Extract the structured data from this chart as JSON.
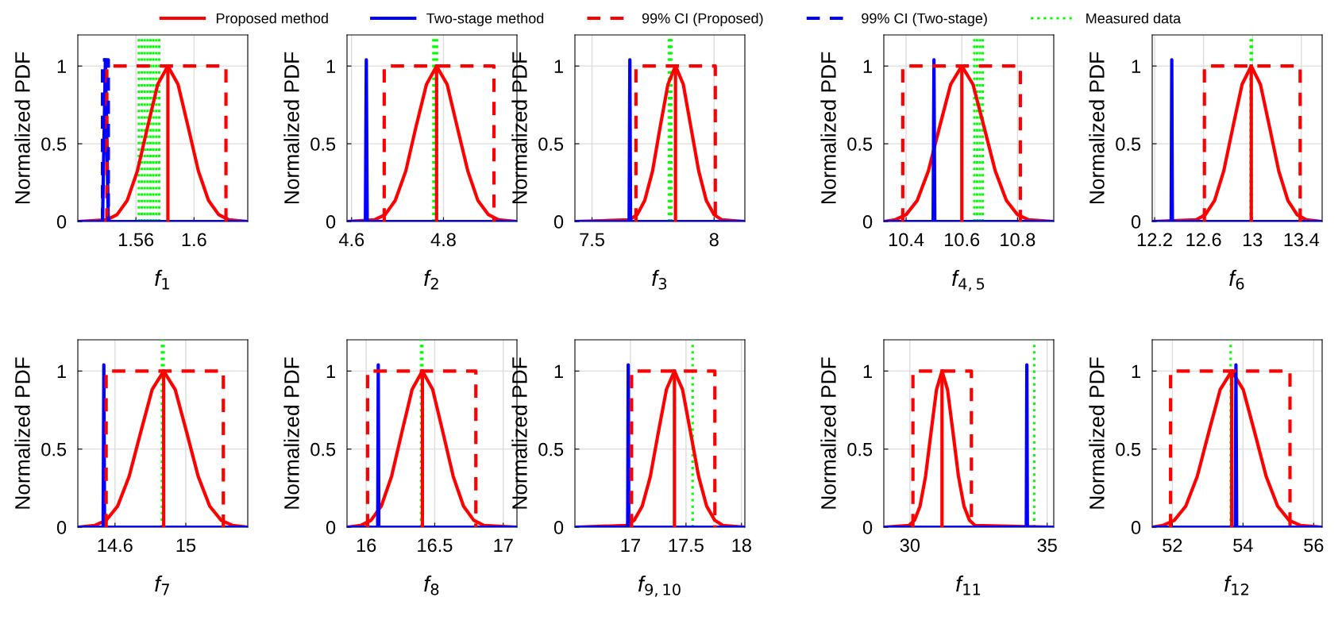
{
  "chart_data": [
    {
      "type": "line",
      "xlabel": "f$_{1}$",
      "ylabel": "Normalized PDF",
      "xlim": [
        1.52,
        1.637
      ],
      "xticks": [
        1.56,
        1.6
      ],
      "ylim": [
        0,
        1.2
      ],
      "yticks": [
        0,
        0.5,
        1
      ],
      "grid": true,
      "legend": "top",
      "series": [
        {
          "name": "Proposed method",
          "color": "#ff0000",
          "line_style": "solid",
          "x": [
            1.52,
            1.54,
            1.547,
            1.554,
            1.561,
            1.568,
            1.575,
            1.582,
            1.589,
            1.596,
            1.603,
            1.61,
            1.617,
            1.624,
            1.637
          ],
          "values": [
            0,
            0.011,
            0.044,
            0.135,
            0.325,
            0.607,
            0.882,
            1,
            0.882,
            0.607,
            0.325,
            0.135,
            0.044,
            0.011,
            0
          ]
        },
        {
          "name": "Two-stage method",
          "color": "#0000ff",
          "line_style": "solid",
          "x": [
            1.52,
            1.537,
            1.539,
            1.541,
            1.637
          ],
          "values": [
            0,
            0,
            1.04,
            0,
            0
          ]
        },
        {
          "name": "99% CI (Proposed)",
          "color": "#ff0000",
          "line_style": "dashed",
          "x": [
            1.54,
            1.54,
            1.622,
            1.622
          ],
          "values": [
            0,
            1,
            1,
            0
          ]
        },
        {
          "name": "99% CI (Two-stage)",
          "color": "#0000ff",
          "line_style": "dashed",
          "x": [
            1.537,
            1.537,
            1.541,
            1.541
          ],
          "values": [
            0,
            1.04,
            1.04,
            0
          ]
        },
        {
          "color": "#ff0000",
          "line_style": "solid",
          "x": [
            1.582,
            1.582
          ],
          "values": [
            0,
            1
          ]
        }
      ],
      "ref_lines": [
        {
          "axis": "x",
          "value": 1.562,
          "label": "Measured data",
          "color": "#00ff00",
          "line_style": "dotted"
        },
        {
          "axis": "x",
          "value": 1.564,
          "color": "#00ff00",
          "line_style": "dotted"
        },
        {
          "axis": "x",
          "value": 1.566,
          "color": "#00ff00",
          "line_style": "dotted"
        },
        {
          "axis": "x",
          "value": 1.568,
          "color": "#00ff00",
          "line_style": "dotted"
        },
        {
          "axis": "x",
          "value": 1.57,
          "color": "#00ff00",
          "line_style": "dotted"
        },
        {
          "axis": "x",
          "value": 1.572,
          "color": "#00ff00",
          "line_style": "dotted"
        },
        {
          "axis": "x",
          "value": 1.574,
          "color": "#00ff00",
          "line_style": "dotted"
        },
        {
          "axis": "x",
          "value": 1.576,
          "color": "#00ff00",
          "line_style": "dotted"
        }
      ]
    },
    {
      "type": "line",
      "xlabel": "f$_{2}$",
      "ylabel": "Normalized PDF",
      "xlim": [
        4.59,
        4.96
      ],
      "xticks": [
        4.6,
        4.8
      ],
      "ylim": [
        0,
        1.2
      ],
      "yticks": [
        0,
        0.5,
        1
      ],
      "grid": true,
      "series": [
        {
          "color": "#ff0000",
          "line_style": "solid",
          "x": [
            4.59,
            4.65,
            4.673,
            4.695,
            4.718,
            4.74,
            4.763,
            4.785,
            4.808,
            4.83,
            4.853,
            4.875,
            4.898,
            4.92,
            4.96
          ],
          "values": [
            0,
            0.011,
            0.044,
            0.135,
            0.325,
            0.607,
            0.882,
            1,
            0.882,
            0.607,
            0.325,
            0.135,
            0.044,
            0.011,
            0
          ]
        },
        {
          "color": "#0000ff",
          "line_style": "solid",
          "x": [
            4.59,
            4.63,
            4.632,
            4.634,
            4.96
          ],
          "values": [
            0,
            0,
            1.04,
            0,
            0
          ]
        },
        {
          "color": "#ff0000",
          "line_style": "dashed",
          "x": [
            4.671,
            4.671,
            4.91,
            4.91
          ],
          "values": [
            0,
            1,
            1,
            0
          ]
        },
        {
          "color": "#ff0000",
          "line_style": "solid",
          "x": [
            4.785,
            4.785
          ],
          "values": [
            0,
            1
          ]
        }
      ],
      "ref_lines": [
        {
          "axis": "x",
          "value": 4.778,
          "color": "#00ff00",
          "line_style": "dotted"
        },
        {
          "axis": "x",
          "value": 4.782,
          "color": "#00ff00",
          "line_style": "dotted"
        },
        {
          "axis": "x",
          "value": 4.786,
          "color": "#00ff00",
          "line_style": "dotted"
        }
      ]
    },
    {
      "type": "line",
      "xlabel": "f$_{3}$",
      "ylabel": "Normalized PDF",
      "xlim": [
        7.43,
        8.126
      ],
      "xticks": [
        7.5,
        8
      ],
      "ylim": [
        0,
        1.2
      ],
      "yticks": [
        0,
        0.5,
        1
      ],
      "grid": true,
      "series": [
        {
          "color": "#ff0000",
          "line_style": "solid",
          "x": [
            7.43,
            7.653,
            7.685,
            7.716,
            7.748,
            7.779,
            7.811,
            7.842,
            7.874,
            7.905,
            7.937,
            7.968,
            8.0,
            8.031,
            8.126
          ],
          "values": [
            0,
            0.011,
            0.044,
            0.135,
            0.325,
            0.607,
            0.882,
            1,
            0.882,
            0.607,
            0.325,
            0.135,
            0.044,
            0.011,
            0
          ]
        },
        {
          "color": "#0000ff",
          "line_style": "solid",
          "x": [
            7.43,
            7.652,
            7.655,
            7.658,
            8.126
          ],
          "values": [
            0,
            0,
            1.04,
            0,
            0
          ]
        },
        {
          "color": "#ff0000",
          "line_style": "dashed",
          "x": [
            7.68,
            7.68,
            8.005,
            8.005
          ],
          "values": [
            0,
            1,
            1,
            0
          ]
        },
        {
          "color": "#ff0000",
          "line_style": "solid",
          "x": [
            7.842,
            7.842
          ],
          "values": [
            0,
            1
          ]
        }
      ],
      "ref_lines": [
        {
          "axis": "x",
          "value": 7.815,
          "color": "#00ff00",
          "line_style": "dotted"
        },
        {
          "axis": "x",
          "value": 7.82,
          "color": "#00ff00",
          "line_style": "dotted"
        },
        {
          "axis": "x",
          "value": 7.825,
          "color": "#00ff00",
          "line_style": "dotted"
        }
      ]
    },
    {
      "type": "line",
      "xlabel": "f$_{4,5}$",
      "ylabel": "Normalized PDF",
      "xlim": [
        10.32,
        10.93
      ],
      "xticks": [
        10.4,
        10.6,
        10.8
      ],
      "ylim": [
        0,
        1.2
      ],
      "yticks": [
        0,
        0.5,
        1
      ],
      "grid": true,
      "series": [
        {
          "color": "#ff0000",
          "line_style": "solid",
          "x": [
            10.32,
            10.36,
            10.4,
            10.44,
            10.48,
            10.52,
            10.56,
            10.6,
            10.64,
            10.68,
            10.72,
            10.76,
            10.8,
            10.84,
            10.93
          ],
          "values": [
            0,
            0.011,
            0.044,
            0.135,
            0.325,
            0.607,
            0.882,
            1,
            0.882,
            0.607,
            0.325,
            0.135,
            0.044,
            0.011,
            0
          ]
        },
        {
          "color": "#0000ff",
          "line_style": "solid",
          "x": [
            10.32,
            10.497,
            10.5,
            10.503,
            10.93
          ],
          "values": [
            0,
            0,
            1.04,
            0,
            0
          ]
        },
        {
          "color": "#ff0000",
          "line_style": "dashed",
          "x": [
            10.388,
            10.388,
            10.81,
            10.81
          ],
          "values": [
            0,
            1,
            1,
            0
          ]
        },
        {
          "color": "#ff0000",
          "line_style": "solid",
          "x": [
            10.6,
            10.6
          ],
          "values": [
            0,
            1
          ]
        }
      ],
      "ref_lines": [
        {
          "axis": "x",
          "value": 10.645,
          "color": "#00ff00",
          "line_style": "dotted"
        },
        {
          "axis": "x",
          "value": 10.655,
          "color": "#00ff00",
          "line_style": "dotted"
        },
        {
          "axis": "x",
          "value": 10.665,
          "color": "#00ff00",
          "line_style": "dotted"
        },
        {
          "axis": "x",
          "value": 10.675,
          "color": "#00ff00",
          "line_style": "dotted"
        }
      ]
    },
    {
      "type": "line",
      "xlabel": "f$_{6}$",
      "ylabel": "Normalized PDF",
      "xlim": [
        12.18,
        13.57
      ],
      "xticks": [
        12.2,
        12.6,
        13,
        13.4
      ],
      "ylim": [
        0,
        1.2
      ],
      "yticks": [
        0,
        0.5,
        1
      ],
      "grid": true,
      "series": [
        {
          "color": "#ff0000",
          "line_style": "solid",
          "x": [
            12.18,
            12.54,
            12.615,
            12.69,
            12.765,
            12.84,
            12.915,
            12.99,
            13.065,
            13.14,
            13.215,
            13.29,
            13.365,
            13.44,
            13.57
          ],
          "values": [
            0,
            0.011,
            0.044,
            0.135,
            0.325,
            0.607,
            0.882,
            1,
            0.882,
            0.607,
            0.325,
            0.135,
            0.044,
            0.011,
            0
          ]
        },
        {
          "color": "#0000ff",
          "line_style": "solid",
          "x": [
            12.18,
            12.335,
            12.34,
            12.345,
            13.57
          ],
          "values": [
            0,
            0,
            1.04,
            0,
            0
          ]
        },
        {
          "color": "#ff0000",
          "line_style": "dashed",
          "x": [
            12.607,
            12.607,
            13.39,
            13.39
          ],
          "values": [
            0,
            1,
            1,
            0
          ]
        },
        {
          "color": "#ff0000",
          "line_style": "solid",
          "x": [
            12.99,
            12.99
          ],
          "values": [
            0,
            1
          ]
        }
      ],
      "ref_lines": [
        {
          "axis": "x",
          "value": 12.985,
          "color": "#00ff00",
          "line_style": "dotted"
        },
        {
          "axis": "x",
          "value": 12.995,
          "color": "#00ff00",
          "line_style": "dotted"
        }
      ]
    },
    {
      "type": "line",
      "xlabel": "f$_{7}$",
      "ylabel": "Normalized PDF",
      "xlim": [
        14.39,
        15.35
      ],
      "xticks": [
        14.6,
        15
      ],
      "ylim": [
        0,
        1.2
      ],
      "yticks": [
        0,
        0.5,
        1
      ],
      "grid": true,
      "series": [
        {
          "color": "#ff0000",
          "line_style": "solid",
          "x": [
            14.39,
            14.485,
            14.55,
            14.615,
            14.68,
            14.745,
            14.81,
            14.875,
            14.94,
            15.005,
            15.07,
            15.135,
            15.2,
            15.265,
            15.35
          ],
          "values": [
            0,
            0.011,
            0.044,
            0.135,
            0.325,
            0.607,
            0.882,
            1,
            0.882,
            0.607,
            0.325,
            0.135,
            0.044,
            0.011,
            0
          ]
        },
        {
          "color": "#0000ff",
          "line_style": "solid",
          "x": [
            14.39,
            14.533,
            14.537,
            14.541,
            15.35
          ],
          "values": [
            0,
            0,
            1.04,
            0,
            0
          ]
        },
        {
          "color": "#ff0000",
          "line_style": "dashed",
          "x": [
            14.55,
            14.55,
            15.212,
            15.212
          ],
          "values": [
            0,
            1,
            1,
            0
          ]
        },
        {
          "color": "#ff0000",
          "line_style": "solid",
          "x": [
            14.875,
            14.875
          ],
          "values": [
            0,
            1
          ]
        }
      ],
      "ref_lines": [
        {
          "axis": "x",
          "value": 14.865,
          "color": "#00ff00",
          "line_style": "dotted"
        },
        {
          "axis": "x",
          "value": 14.875,
          "color": "#00ff00",
          "line_style": "dotted"
        }
      ]
    },
    {
      "type": "line",
      "xlabel": "f$_{8}$",
      "ylabel": "Normalized PDF",
      "xlim": [
        15.86,
        17.1
      ],
      "xticks": [
        16,
        16.5,
        17
      ],
      "ylim": [
        0,
        1.2
      ],
      "yticks": [
        0,
        0.5,
        1
      ],
      "grid": true,
      "series": [
        {
          "color": "#ff0000",
          "line_style": "solid",
          "x": [
            15.86,
            15.96,
            16.035,
            16.11,
            16.185,
            16.26,
            16.335,
            16.41,
            16.485,
            16.56,
            16.635,
            16.71,
            16.785,
            16.86,
            17.1
          ],
          "values": [
            0,
            0.011,
            0.044,
            0.135,
            0.325,
            0.607,
            0.882,
            1,
            0.882,
            0.607,
            0.325,
            0.135,
            0.044,
            0.011,
            0
          ]
        },
        {
          "color": "#0000ff",
          "line_style": "solid",
          "x": [
            15.86,
            16.084,
            16.088,
            16.092,
            17.1
          ],
          "values": [
            0,
            0,
            1.04,
            0,
            0
          ]
        },
        {
          "color": "#ff0000",
          "line_style": "dashed",
          "x": [
            16.01,
            16.01,
            16.8,
            16.8
          ],
          "values": [
            0,
            1,
            1,
            0
          ]
        },
        {
          "color": "#ff0000",
          "line_style": "solid",
          "x": [
            16.41,
            16.41
          ],
          "values": [
            0,
            1
          ]
        }
      ],
      "ref_lines": [
        {
          "axis": "x",
          "value": 16.4,
          "color": "#00ff00",
          "line_style": "dotted"
        },
        {
          "axis": "x",
          "value": 16.41,
          "color": "#00ff00",
          "line_style": "dotted"
        }
      ]
    },
    {
      "type": "line",
      "xlabel": "f$_{9,10}$",
      "ylabel": "Normalized PDF",
      "xlim": [
        16.5,
        18.03
      ],
      "xticks": [
        17,
        17.5,
        18
      ],
      "ylim": [
        0,
        1.2
      ],
      "yticks": [
        0,
        0.5,
        1
      ],
      "grid": true,
      "series": [
        {
          "color": "#ff0000",
          "line_style": "solid",
          "x": [
            16.5,
            16.961,
            17.034,
            17.106,
            17.179,
            17.251,
            17.324,
            17.396,
            17.469,
            17.541,
            17.614,
            17.686,
            17.759,
            17.831,
            18.03
          ],
          "values": [
            0,
            0.011,
            0.044,
            0.135,
            0.325,
            0.607,
            0.882,
            1,
            0.882,
            0.607,
            0.325,
            0.135,
            0.044,
            0.011,
            0
          ]
        },
        {
          "color": "#0000ff",
          "line_style": "solid",
          "x": [
            16.5,
            16.975,
            16.98,
            16.985,
            18.03
          ],
          "values": [
            0,
            0,
            1.04,
            0,
            0
          ]
        },
        {
          "color": "#ff0000",
          "line_style": "dashed",
          "x": [
            17.01,
            17.01,
            17.76,
            17.76
          ],
          "values": [
            0,
            1,
            1,
            0
          ]
        },
        {
          "color": "#ff0000",
          "line_style": "solid",
          "x": [
            17.396,
            17.396
          ],
          "values": [
            0,
            1
          ]
        }
      ],
      "ref_lines": [
        {
          "axis": "x",
          "value": 17.56,
          "color": "#00ff00",
          "line_style": "dotted"
        }
      ]
    },
    {
      "type": "line",
      "xlabel": "f$_{11}$",
      "ylabel": "Normalized PDF",
      "xlim": [
        29.05,
        35.24
      ],
      "xticks": [
        30,
        35
      ],
      "ylim": [
        0,
        1.2
      ],
      "yticks": [
        0,
        0.5,
        1
      ],
      "grid": true,
      "series": [
        {
          "color": "#ff0000",
          "line_style": "solid",
          "x": [
            29.05,
            29.97,
            30.17,
            30.37,
            30.57,
            30.77,
            30.97,
            31.17,
            31.37,
            31.57,
            31.77,
            31.97,
            32.17,
            32.37,
            35.24
          ],
          "values": [
            0,
            0.011,
            0.044,
            0.135,
            0.325,
            0.607,
            0.882,
            1,
            0.882,
            0.607,
            0.325,
            0.135,
            0.044,
            0.011,
            0
          ]
        },
        {
          "color": "#0000ff",
          "line_style": "solid",
          "x": [
            29.05,
            34.24,
            34.26,
            34.28,
            35.24
          ],
          "values": [
            0,
            0,
            1.04,
            0,
            0
          ]
        },
        {
          "color": "#ff0000",
          "line_style": "dashed",
          "x": [
            30.11,
            30.11,
            32.24,
            32.24
          ],
          "values": [
            0,
            1,
            1,
            0
          ]
        },
        {
          "color": "#ff0000",
          "line_style": "solid",
          "x": [
            31.17,
            31.17
          ],
          "values": [
            0,
            1
          ]
        }
      ],
      "ref_lines": [
        {
          "axis": "x",
          "value": 34.53,
          "color": "#00ff00",
          "line_style": "dotted"
        }
      ]
    },
    {
      "type": "line",
      "xlabel": "f$_{12}$",
      "ylabel": "Normalized PDF",
      "xlim": [
        51.43,
        56.24
      ],
      "xticks": [
        52,
        54,
        56
      ],
      "ylim": [
        0,
        1.2
      ],
      "yticks": [
        0,
        0.5,
        1
      ],
      "grid": true,
      "series": [
        {
          "color": "#ff0000",
          "line_style": "solid",
          "x": [
            51.43,
            51.73,
            52.055,
            52.38,
            52.705,
            53.03,
            53.355,
            53.68,
            54.005,
            54.33,
            54.655,
            54.98,
            55.305,
            55.63,
            56.24
          ],
          "values": [
            0,
            0.011,
            0.044,
            0.135,
            0.325,
            0.607,
            0.882,
            1,
            0.882,
            0.607,
            0.325,
            0.135,
            0.044,
            0.011,
            0
          ]
        },
        {
          "color": "#0000ff",
          "line_style": "solid",
          "x": [
            51.43,
            53.78,
            53.8,
            53.82,
            56.24
          ],
          "values": [
            0,
            0,
            1.04,
            0,
            0
          ]
        },
        {
          "color": "#ff0000",
          "line_style": "dashed",
          "x": [
            51.95,
            51.95,
            55.33,
            55.33
          ],
          "values": [
            0,
            1,
            1,
            0
          ]
        },
        {
          "color": "#ff0000",
          "line_style": "solid",
          "x": [
            53.68,
            53.68
          ],
          "values": [
            0,
            1
          ]
        }
      ],
      "ref_lines": [
        {
          "axis": "x",
          "value": 53.65,
          "color": "#00ff00",
          "line_style": "dotted"
        }
      ]
    }
  ]
}
